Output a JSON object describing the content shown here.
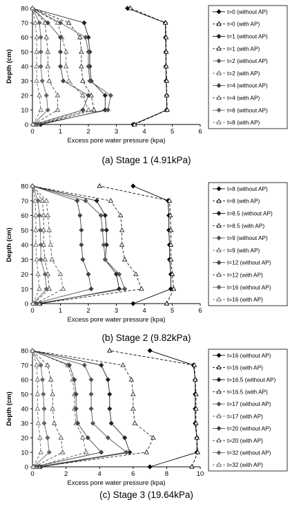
{
  "chart_data": [
    {
      "type": "line",
      "caption": "(a) Stage 1 (4.91kPa)",
      "xlabel": "Excess pore water pressure (kpa)",
      "ylabel": "Depth (cm)",
      "xlim": [
        0,
        6
      ],
      "ylim": [
        0,
        80
      ],
      "xticks": [
        "0",
        "1",
        "2",
        "3",
        "4",
        "5",
        "6"
      ],
      "yticks": [
        "0",
        "10",
        "20",
        "30",
        "40",
        "50",
        "60",
        "70",
        "80"
      ],
      "depths": [
        0,
        10,
        20,
        30,
        40,
        50,
        60,
        70,
        80
      ],
      "grid": false,
      "legend_position": "right",
      "series": [
        {
          "name": "t=0 (without AP)",
          "dash": false,
          "marker": "diamond",
          "color": "#000000",
          "values": [
            3.6,
            4.8,
            4.8,
            4.78,
            4.77,
            4.77,
            4.76,
            4.75,
            3.4
          ]
        },
        {
          "name": "t=0 (with AP)",
          "dash": true,
          "marker": "triangle",
          "color": "#000000",
          "values": [
            3.65,
            4.82,
            4.8,
            4.8,
            4.78,
            4.78,
            4.78,
            4.76,
            3.5
          ]
        },
        {
          "name": "t=1 (without AP)",
          "dash": false,
          "marker": "diamond",
          "color": "#222222",
          "values": [
            0.3,
            2.6,
            2.6,
            2.1,
            2.05,
            2.05,
            2.0,
            1.85,
            0
          ]
        },
        {
          "name": "t=1 (with AP)",
          "dash": true,
          "marker": "triangle",
          "color": "#222222",
          "values": [
            0.2,
            2.2,
            2.1,
            1.8,
            1.75,
            1.75,
            1.7,
            1.3,
            0
          ]
        },
        {
          "name": "t=2 (without AP)",
          "dash": false,
          "marker": "diamond",
          "color": "#555555",
          "values": [
            0.15,
            2.7,
            2.8,
            2.05,
            2.0,
            2.0,
            1.9,
            1.0,
            0
          ]
        },
        {
          "name": "t=2 (with AP)",
          "dash": true,
          "marker": "triangle",
          "color": "#555555",
          "values": [
            0.1,
            2.0,
            1.8,
            1.3,
            1.2,
            1.2,
            1.05,
            0.9,
            0
          ]
        },
        {
          "name": "t=4 (without AP)",
          "dash": false,
          "marker": "diamond",
          "color": "#444444",
          "values": [
            0.05,
            1.8,
            2.0,
            1.1,
            1.0,
            1.0,
            1.0,
            0.55,
            0
          ]
        },
        {
          "name": "t=4 (with AP)",
          "dash": true,
          "marker": "triangle",
          "color": "#444444",
          "values": [
            0.05,
            0.9,
            0.9,
            0.6,
            0.55,
            0.55,
            0.5,
            0.45,
            0
          ]
        },
        {
          "name": "t=8 (without AP)",
          "dash": false,
          "marker": "diamond",
          "color": "#666666",
          "values": [
            0.02,
            0.55,
            0.5,
            0.35,
            0.3,
            0.3,
            0.3,
            0.25,
            0
          ]
        },
        {
          "name": "t=8 (with AP)",
          "dash": true,
          "marker": "triangle",
          "color": "#666666",
          "values": [
            0.02,
            0.3,
            0.25,
            0.15,
            0.15,
            0.15,
            0.15,
            0.1,
            0
          ]
        }
      ]
    },
    {
      "type": "line",
      "caption": "(b) Stage 2 (9.82kPa)",
      "xlabel": "Excess pore water pressure (kpa)",
      "ylabel": "Depth (cm)",
      "xlim": [
        0,
        6
      ],
      "ylim": [
        0,
        80
      ],
      "xticks": [
        "0",
        "1",
        "2",
        "3",
        "4",
        "5",
        "6"
      ],
      "yticks": [
        "0",
        "10",
        "20",
        "30",
        "40",
        "50",
        "60",
        "70",
        "80"
      ],
      "depths": [
        0,
        10,
        20,
        30,
        40,
        50,
        60,
        70,
        80
      ],
      "grid": false,
      "legend_position": "right",
      "series": [
        {
          "name": "t=8 (without AP)",
          "dash": false,
          "marker": "diamond",
          "color": "#000000",
          "values": [
            3.6,
            4.95,
            4.95,
            4.9,
            4.9,
            4.88,
            4.88,
            4.85,
            3.6
          ]
        },
        {
          "name": "t=8 (with AP)",
          "dash": true,
          "marker": "triangle",
          "color": "#000000",
          "values": [
            4.8,
            5.05,
            5.0,
            4.95,
            4.95,
            4.95,
            4.93,
            4.9,
            2.4
          ]
        },
        {
          "name": "t=8.5 (without AP)",
          "dash": false,
          "marker": "diamond",
          "color": "#222222",
          "values": [
            0.3,
            3.1,
            3.0,
            2.6,
            2.65,
            2.65,
            2.6,
            2.3,
            0
          ]
        },
        {
          "name": "t=8.5 (with AP)",
          "dash": true,
          "marker": "triangle",
          "color": "#222222",
          "values": [
            0.25,
            3.9,
            3.7,
            3.3,
            3.2,
            3.2,
            3.15,
            2.8,
            0
          ]
        },
        {
          "name": "t=9 (without AP)",
          "dash": false,
          "marker": "diamond",
          "color": "#555555",
          "values": [
            0.15,
            3.3,
            3.1,
            2.6,
            2.55,
            2.5,
            2.45,
            1.9,
            0
          ]
        },
        {
          "name": "t=9 (with AP)",
          "dash": true,
          "marker": "triangle",
          "color": "#555555",
          "values": [
            0.1,
            1.1,
            1.0,
            0.7,
            0.65,
            0.6,
            0.55,
            0.5,
            0
          ]
        },
        {
          "name": "t=12 (without AP)",
          "dash": false,
          "marker": "diamond",
          "color": "#444444",
          "values": [
            0.05,
            2.1,
            2.0,
            1.8,
            1.75,
            1.75,
            1.7,
            1.6,
            0
          ]
        },
        {
          "name": "t=12 (with AP)",
          "dash": true,
          "marker": "triangle",
          "color": "#444444",
          "values": [
            0.05,
            0.6,
            0.55,
            0.45,
            0.4,
            0.4,
            0.4,
            0.35,
            0
          ]
        },
        {
          "name": "t=16 (without AP)",
          "dash": false,
          "marker": "diamond",
          "color": "#666666",
          "values": [
            0.02,
            0.5,
            0.45,
            0.3,
            0.3,
            0.28,
            0.25,
            0.2,
            0
          ]
        },
        {
          "name": "t=16 (with AP)",
          "dash": true,
          "marker": "triangle",
          "color": "#666666",
          "values": [
            0.02,
            0.25,
            0.2,
            0.15,
            0.12,
            0.12,
            0.12,
            0.1,
            0
          ]
        }
      ]
    },
    {
      "type": "line",
      "caption": "(c) Stage 3 (19.64kPa)",
      "xlabel": "Excess pore water pressure (kpa)",
      "ylabel": "Depth (cm)",
      "xlim": [
        0,
        10
      ],
      "ylim": [
        0,
        80
      ],
      "xticks": [
        "0",
        "2",
        "4",
        "6",
        "8",
        "10"
      ],
      "yticks": [
        "0",
        "10",
        "20",
        "30",
        "40",
        "50",
        "60",
        "70",
        "80"
      ],
      "depths": [
        0,
        10,
        20,
        30,
        40,
        50,
        60,
        70,
        80
      ],
      "grid": false,
      "legend_position": "right",
      "series": [
        {
          "name": "t=16 (without AP)",
          "dash": false,
          "marker": "diamond",
          "color": "#000000",
          "values": [
            7.0,
            9.8,
            9.8,
            9.7,
            9.7,
            9.7,
            9.7,
            9.6,
            7.0
          ]
        },
        {
          "name": "t=16 (with AP)",
          "dash": true,
          "marker": "triangle",
          "color": "#000000",
          "values": [
            9.5,
            9.85,
            9.8,
            9.75,
            9.75,
            9.75,
            9.7,
            9.65,
            4.6
          ]
        },
        {
          "name": "t=16.5 (without AP)",
          "dash": false,
          "marker": "diamond",
          "color": "#222222",
          "values": [
            0.5,
            5.8,
            5.5,
            4.7,
            4.6,
            4.6,
            4.5,
            4.1,
            0
          ]
        },
        {
          "name": "t=16.5 (with AP)",
          "dash": true,
          "marker": "triangle",
          "color": "#222222",
          "values": [
            0.4,
            6.8,
            7.2,
            6.1,
            6.0,
            6.0,
            5.9,
            5.4,
            0
          ]
        },
        {
          "name": "t=17 (without AP)",
          "dash": false,
          "marker": "diamond",
          "color": "#555555",
          "values": [
            0.3,
            5.6,
            4.5,
            3.6,
            3.5,
            3.5,
            3.5,
            3.1,
            0
          ]
        },
        {
          "name": "t=17 (with AP)",
          "dash": true,
          "marker": "triangle",
          "color": "#555555",
          "values": [
            0.2,
            3.2,
            3.0,
            2.6,
            2.5,
            2.5,
            2.4,
            2.1,
            0
          ]
        },
        {
          "name": "t=20 (without AP)",
          "dash": false,
          "marker": "diamond",
          "color": "#444444",
          "values": [
            0.1,
            4.1,
            3.3,
            2.7,
            2.6,
            2.6,
            2.5,
            2.2,
            0
          ]
        },
        {
          "name": "t=20 (with AP)",
          "dash": true,
          "marker": "triangle",
          "color": "#444444",
          "values": [
            0.1,
            1.8,
            1.7,
            1.3,
            1.2,
            1.2,
            1.1,
            0.9,
            0
          ]
        },
        {
          "name": "t=32 (without AP)",
          "dash": false,
          "marker": "diamond",
          "color": "#666666",
          "values": [
            0.05,
            1.0,
            0.9,
            0.7,
            0.7,
            0.65,
            0.6,
            0.5,
            0
          ]
        },
        {
          "name": "t=32 (with AP)",
          "dash": true,
          "marker": "triangle",
          "color": "#666666",
          "values": [
            0.05,
            0.5,
            0.45,
            0.35,
            0.3,
            0.3,
            0.3,
            0.25,
            0
          ]
        }
      ]
    }
  ]
}
